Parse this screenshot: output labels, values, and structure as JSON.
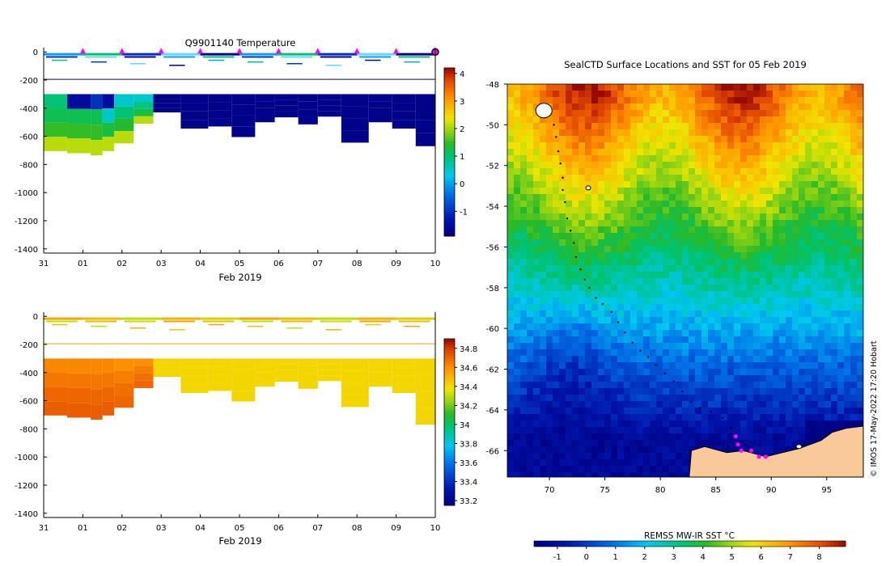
{
  "chart_data": [
    {
      "type": "heatmap",
      "title": "Q9901140  Temperature",
      "xlabel": "Feb 2019",
      "ylabel": "",
      "x_tick_labels": [
        "31",
        "01",
        "02",
        "03",
        "04",
        "05",
        "06",
        "07",
        "08",
        "09",
        "10"
      ],
      "x_range_days": [
        0,
        10
      ],
      "y_tick_labels": [
        "0",
        "-200",
        "-400",
        "-600",
        "-800",
        "-1000",
        "-1200",
        "-1400"
      ],
      "y_range": [
        -1430,
        30
      ],
      "colorbar": {
        "ticks": [
          -1,
          0,
          1,
          2,
          3,
          4
        ],
        "range": [
          -1.9,
          4.2
        ]
      },
      "surface_markers_days": [
        1.0,
        2.0,
        3.0,
        4.0,
        5.0,
        6.0,
        7.0,
        8.0,
        9.0,
        10.0
      ],
      "profiles": [
        {
          "t0": 0.0,
          "t1": 0.6,
          "depth": 705,
          "values": [
            1.0,
            1.2,
            1.5,
            2.1
          ]
        },
        {
          "t0": 0.6,
          "t1": 1.2,
          "depth": 720,
          "values": [
            -1.5,
            1.2,
            1.5,
            2.1
          ]
        },
        {
          "t0": 1.2,
          "t1": 1.5,
          "depth": 735,
          "values": [
            -1.0,
            1.2,
            1.5,
            2.1
          ]
        },
        {
          "t0": 1.5,
          "t1": 1.8,
          "depth": 705,
          "values": [
            -1.5,
            0.5,
            1.3,
            2.1
          ]
        },
        {
          "t0": 1.8,
          "t1": 2.3,
          "depth": 650,
          "values": [
            0.5,
            1.0,
            1.4,
            2.1
          ]
        },
        {
          "t0": 2.3,
          "t1": 2.8,
          "depth": 510,
          "values": [
            0.5,
            0.9,
            1.3,
            2.1
          ]
        },
        {
          "t0": 2.8,
          "t1": 3.5,
          "depth": 430,
          "values": [
            -1.8,
            -1.8,
            -1.8,
            -1.8
          ]
        },
        {
          "t0": 3.5,
          "t1": 4.2,
          "depth": 545,
          "values": [
            -1.8,
            -1.8,
            -1.8,
            -1.8
          ]
        },
        {
          "t0": 4.2,
          "t1": 4.8,
          "depth": 530,
          "values": [
            -1.8,
            -1.8,
            -1.8,
            -1.8
          ]
        },
        {
          "t0": 4.8,
          "t1": 5.4,
          "depth": 605,
          "values": [
            -1.8,
            -1.8,
            -1.8,
            -1.8
          ]
        },
        {
          "t0": 5.4,
          "t1": 5.9,
          "depth": 500,
          "values": [
            -1.8,
            -1.8,
            -1.8,
            -1.8
          ]
        },
        {
          "t0": 5.9,
          "t1": 6.5,
          "depth": 465,
          "values": [
            -1.8,
            -1.8,
            -1.8,
            -1.8
          ]
        },
        {
          "t0": 6.5,
          "t1": 7.0,
          "depth": 515,
          "values": [
            -1.8,
            -1.8,
            -1.8,
            -1.8
          ]
        },
        {
          "t0": 7.0,
          "t1": 7.6,
          "depth": 460,
          "values": [
            -1.8,
            -1.8,
            -1.8,
            -1.8
          ]
        },
        {
          "t0": 7.6,
          "t1": 8.3,
          "depth": 645,
          "values": [
            -1.8,
            -1.8,
            -1.8,
            -1.8
          ]
        },
        {
          "t0": 8.3,
          "t1": 8.9,
          "depth": 500,
          "values": [
            -1.8,
            -1.8,
            -1.8,
            -1.8
          ]
        },
        {
          "t0": 8.9,
          "t1": 9.5,
          "depth": 545,
          "values": [
            -1.8,
            -1.8,
            -1.8,
            -1.8
          ]
        },
        {
          "t0": 9.5,
          "t1": 10.0,
          "depth": 670,
          "values": [
            -1.8,
            -1.8,
            -1.8,
            -1.8
          ]
        }
      ]
    },
    {
      "type": "heatmap",
      "title": "",
      "xlabel": "Feb 2019",
      "ylabel": "",
      "x_tick_labels": [
        "31",
        "01",
        "02",
        "03",
        "04",
        "05",
        "06",
        "07",
        "08",
        "09",
        "10"
      ],
      "x_range_days": [
        0,
        10
      ],
      "y_tick_labels": [
        "0",
        "-200",
        "-400",
        "-600",
        "-800",
        "-1000",
        "-1200",
        "-1400"
      ],
      "y_range": [
        -1430,
        30
      ],
      "colorbar": {
        "ticks": [
          "33.2",
          "33.4",
          "33.6",
          "33.8",
          "34",
          "34.2",
          "34.4",
          "34.6",
          "34.8"
        ],
        "range": [
          33.15,
          34.9
        ]
      },
      "surface_markers_days": [],
      "profiles": [
        {
          "t0": 0.0,
          "t1": 0.6,
          "depth": 705,
          "values": [
            34.62,
            34.66,
            34.7,
            34.72
          ]
        },
        {
          "t0": 0.6,
          "t1": 1.2,
          "depth": 720,
          "values": [
            34.62,
            34.66,
            34.7,
            34.72
          ]
        },
        {
          "t0": 1.2,
          "t1": 1.5,
          "depth": 735,
          "values": [
            34.62,
            34.66,
            34.7,
            34.72
          ]
        },
        {
          "t0": 1.5,
          "t1": 1.8,
          "depth": 705,
          "values": [
            34.62,
            34.66,
            34.7,
            34.72
          ]
        },
        {
          "t0": 1.8,
          "t1": 2.3,
          "depth": 650,
          "values": [
            34.6,
            34.64,
            34.68,
            34.7
          ]
        },
        {
          "t0": 2.3,
          "t1": 2.8,
          "depth": 510,
          "values": [
            34.6,
            34.64,
            34.68,
            34.7
          ]
        },
        {
          "t0": 2.8,
          "t1": 3.5,
          "depth": 430,
          "values": [
            34.42,
            34.42,
            34.42,
            34.42
          ]
        },
        {
          "t0": 3.5,
          "t1": 4.2,
          "depth": 545,
          "values": [
            34.42,
            34.42,
            34.42,
            34.42
          ]
        },
        {
          "t0": 4.2,
          "t1": 4.8,
          "depth": 530,
          "values": [
            34.42,
            34.42,
            34.42,
            34.42
          ]
        },
        {
          "t0": 4.8,
          "t1": 5.4,
          "depth": 605,
          "values": [
            34.42,
            34.42,
            34.42,
            34.42
          ]
        },
        {
          "t0": 5.4,
          "t1": 5.9,
          "depth": 500,
          "values": [
            34.42,
            34.42,
            34.42,
            34.42
          ]
        },
        {
          "t0": 5.9,
          "t1": 6.5,
          "depth": 465,
          "values": [
            34.42,
            34.42,
            34.42,
            34.42
          ]
        },
        {
          "t0": 6.5,
          "t1": 7.0,
          "depth": 515,
          "values": [
            34.42,
            34.42,
            34.42,
            34.42
          ]
        },
        {
          "t0": 7.0,
          "t1": 7.6,
          "depth": 460,
          "values": [
            34.42,
            34.42,
            34.42,
            34.42
          ]
        },
        {
          "t0": 7.6,
          "t1": 8.3,
          "depth": 645,
          "values": [
            34.42,
            34.42,
            34.42,
            34.42
          ]
        },
        {
          "t0": 8.3,
          "t1": 8.9,
          "depth": 500,
          "values": [
            34.42,
            34.42,
            34.42,
            34.42
          ]
        },
        {
          "t0": 8.9,
          "t1": 9.5,
          "depth": 545,
          "values": [
            34.42,
            34.42,
            34.42,
            34.42
          ]
        },
        {
          "t0": 9.5,
          "t1": 10.0,
          "depth": 770,
          "values": [
            34.42,
            34.42,
            34.42,
            34.42
          ]
        }
      ]
    },
    {
      "type": "heatmap",
      "title": "SealCTD Surface Locations and SST for 05 Feb 2019",
      "xlabel": "",
      "ylabel": "",
      "x_tick_labels": [
        "70",
        "75",
        "80",
        "85",
        "90",
        "95"
      ],
      "y_tick_labels": [
        "-48",
        "-50",
        "-52",
        "-54",
        "-56",
        "-58",
        "-60",
        "-62",
        "-64",
        "-66"
      ],
      "lon_range": [
        66.2,
        98.3
      ],
      "lat_range": [
        -67.3,
        -48
      ],
      "colorbar": {
        "label": "REMSS MW-IR SST °C",
        "ticks": [
          -1,
          0,
          1,
          2,
          3,
          4,
          5,
          6,
          7,
          8
        ],
        "range": [
          -1.8,
          8.9
        ]
      },
      "track": [
        [
          70.4,
          -50.0
        ],
        [
          70.6,
          -50.6
        ],
        [
          70.8,
          -51.3
        ],
        [
          71.0,
          -51.9
        ],
        [
          71.2,
          -52.6
        ],
        [
          71.2,
          -53.2
        ],
        [
          71.4,
          -53.8
        ],
        [
          71.6,
          -54.6
        ],
        [
          71.9,
          -55.2
        ],
        [
          72.2,
          -55.8
        ],
        [
          72.4,
          -56.5
        ],
        [
          72.8,
          -57.1
        ],
        [
          73.2,
          -57.6
        ],
        [
          73.6,
          -58.0
        ],
        [
          74.2,
          -58.5
        ],
        [
          74.8,
          -58.8
        ],
        [
          75.6,
          -59.2
        ],
        [
          76.2,
          -59.7
        ],
        [
          76.8,
          -60.2
        ],
        [
          77.5,
          -60.7
        ],
        [
          78.2,
          -61.1
        ],
        [
          78.9,
          -61.4
        ],
        [
          79.6,
          -61.8
        ],
        [
          80.4,
          -62.2
        ],
        [
          81.2,
          -62.6
        ],
        [
          82.0,
          -63.1
        ],
        [
          82.8,
          -63.6
        ],
        [
          83.6,
          -63.9
        ],
        [
          84.6,
          -64.1
        ],
        [
          85.6,
          -64.4
        ],
        [
          86.4,
          -64.9
        ],
        [
          87.0,
          -65.5
        ],
        [
          87.6,
          -66.0
        ]
      ],
      "surface_locations": [
        [
          86.8,
          -65.3
        ],
        [
          87.0,
          -65.7
        ],
        [
          87.3,
          -66.0
        ],
        [
          88.2,
          -66.0
        ],
        [
          88.9,
          -66.3
        ],
        [
          89.5,
          -66.3
        ]
      ],
      "annotation": "© IMOS 17-May-2022 17:20 Hobart"
    }
  ]
}
